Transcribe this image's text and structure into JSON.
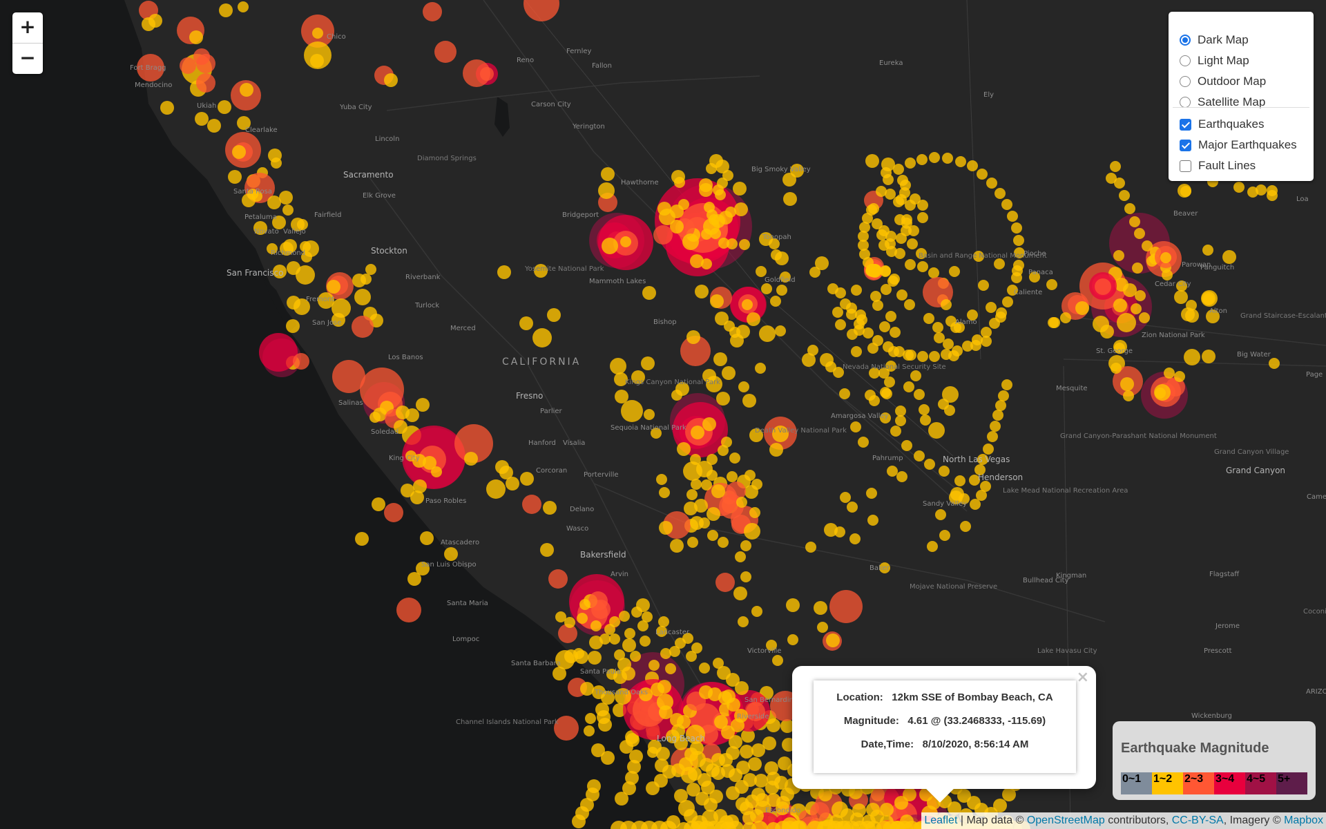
{
  "zoom": {
    "in": "+",
    "out": "−"
  },
  "layer_control": {
    "base_layers": [
      {
        "label": "Dark Map",
        "checked": true
      },
      {
        "label": "Light Map",
        "checked": false
      },
      {
        "label": "Outdoor Map",
        "checked": false
      },
      {
        "label": "Satellite Map",
        "checked": false
      }
    ],
    "overlays": [
      {
        "label": "Earthquakes",
        "checked": true
      },
      {
        "label": "Major Earthquakes",
        "checked": true
      },
      {
        "label": "Fault Lines",
        "checked": false
      }
    ]
  },
  "popup": {
    "close": "×",
    "location_label": "Location:",
    "location_value": "12km SSE of Bombay Beach, CA",
    "magnitude_label": "Magnitude:",
    "magnitude_value": "4.61 @ (33.2468333, -115.69)",
    "datetime_label": "Date,Time:",
    "datetime_value": "8/10/2020, 8:56:14 AM"
  },
  "legend": {
    "title": "Earthquake Magnitude",
    "bins": [
      {
        "label": "0~1",
        "color": "#7f8c9b"
      },
      {
        "label": "1~2",
        "color": "#ffc300"
      },
      {
        "label": "2~3",
        "color": "#ff5733"
      },
      {
        "label": "3~4",
        "color": "#e8003d"
      },
      {
        "label": "4~5",
        "color": "#a01145"
      },
      {
        "label": "5+",
        "color": "#5e1d4a"
      }
    ]
  },
  "attribution": {
    "leaflet": "Leaflet",
    "sep": " | Map data © ",
    "osm": "OpenStreetMap",
    "contrib": " contributors, ",
    "license": "CC-BY-SA",
    "imagery": ", Imagery © ",
    "mapbox": "Mapbox"
  },
  "places": [
    "Mendocino",
    "Fort Bragg",
    "Ukiah",
    "Clearlake",
    "Yuba City",
    "Lincoln",
    "Sacramento",
    "Elk Grove",
    "Santa Rosa",
    "Fairfield",
    "Petaluma",
    "Novato",
    "Vallejo",
    "Richmond",
    "San Francisco",
    "Stockton",
    "Fremont",
    "San Jose",
    "Riverbank",
    "Turlock",
    "Merced",
    "Los Banos",
    "CALIFORNIA",
    "Fresno",
    "Parlier",
    "Hanford",
    "Visalia",
    "Corcoran",
    "Porterville",
    "Salinas",
    "Soledad",
    "King City",
    "Paso Robles",
    "Atascadero",
    "San Luis Obispo",
    "Delano",
    "Wasco",
    "Bakersfield",
    "Arvin",
    "Santa Maria",
    "Lompoc",
    "Santa Barbara",
    "Santa Paula",
    "Thousand Oaks",
    "Lancaster",
    "Victorville",
    "Long Beach",
    "Riverside",
    "San Bernardino",
    "Escondido",
    "Reno",
    "Fernley",
    "Fallon",
    "Carson City",
    "Yerington",
    "Hawthorne",
    "Bridgeport",
    "Mammoth Lakes",
    "Bishop",
    "Tonopah",
    "Goldfield",
    "Eureka",
    "Ely",
    "Big Smoky Valley",
    "Pioche",
    "Panaca",
    "Caliente",
    "Alamo",
    "Basin and Range National Monument",
    "Nevada National Security Site",
    "Amargosa Valley",
    "Pahrump",
    "North Las Vegas",
    "Henderson",
    "Sandy Valley",
    "Lake Mead National Recreation Area",
    "Mesquite",
    "Baker",
    "Mojave National Preserve",
    "Bullhead City",
    "Kingman",
    "Lake Havasu City",
    "Prescott",
    "Jerome",
    "Flagstaff",
    "Grand Canyon",
    "Grand Canyon Village",
    "Grand Canyon-Parashant National Monument",
    "St. George",
    "Cedar City",
    "Parowan",
    "Panguitch",
    "Zion National Park",
    "Alton",
    "Grand Staircase-Escalante National Monument",
    "Big Water",
    "Page",
    "Loa",
    "Beaver",
    "Wickenburg",
    "ARIZO",
    "Cameron",
    "Coconino National Forest",
    "Yosemite National Park",
    "Kings Canyon National Park",
    "Sequoia National Park",
    "Death Valley National Park",
    "Diamond Springs",
    "Channel Islands National Park",
    "Chico"
  ]
}
